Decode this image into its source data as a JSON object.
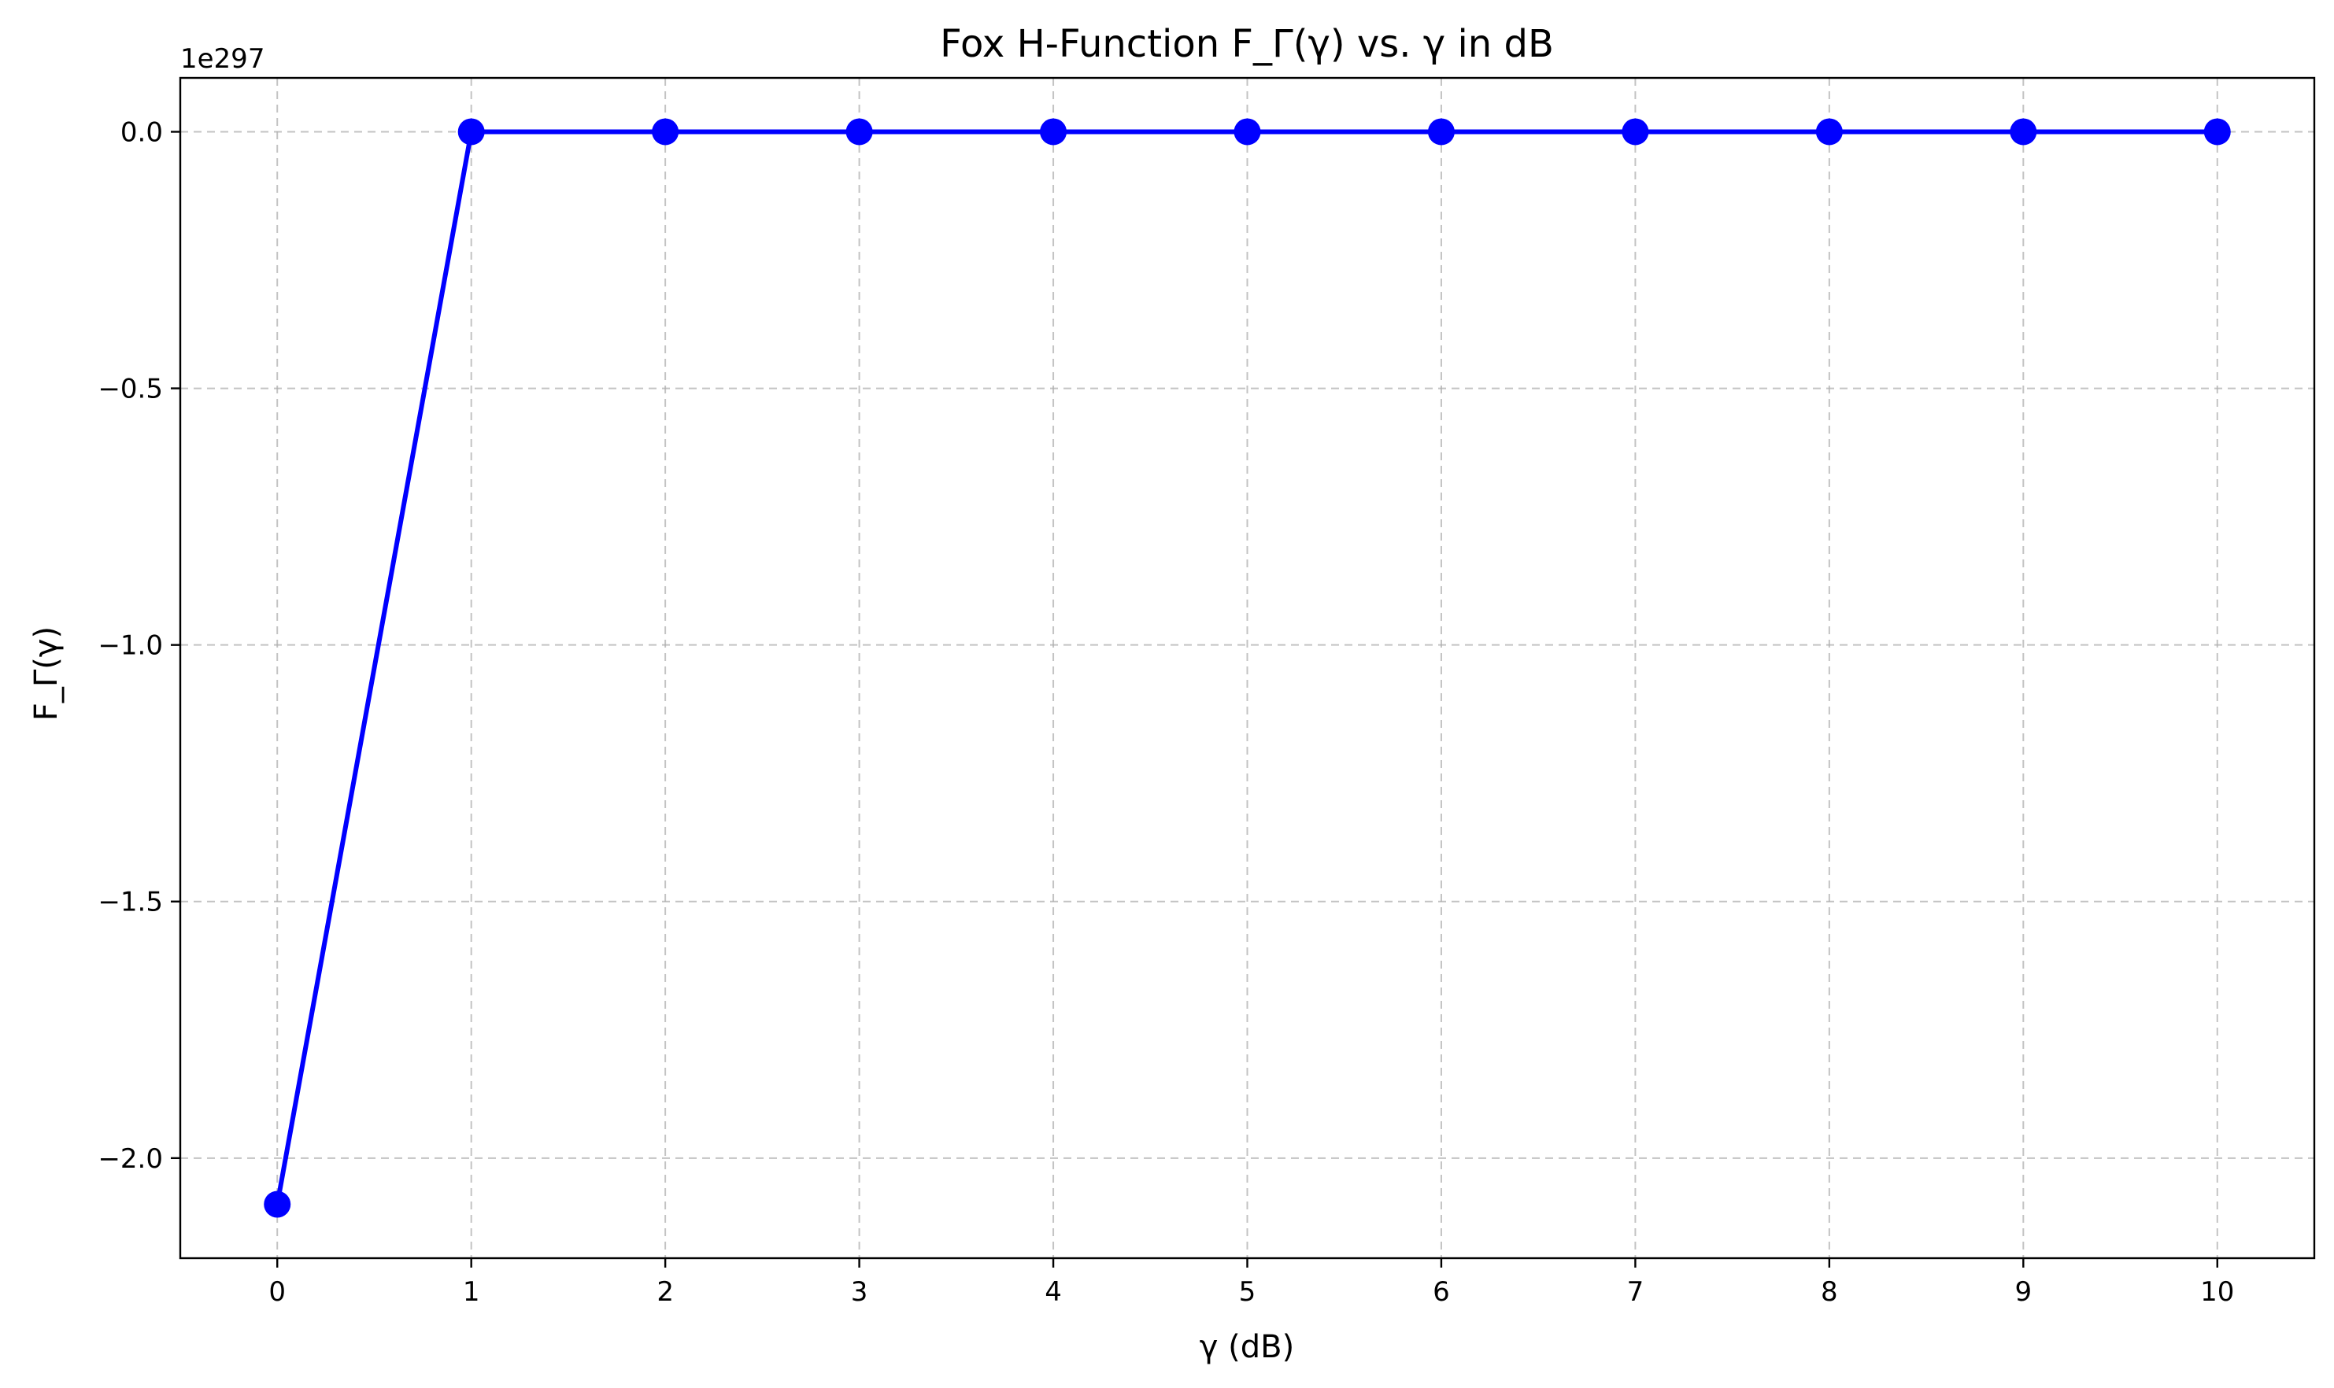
{
  "chart_data": {
    "type": "line",
    "title": "Fox H-Function F_Γ(γ) vs. γ in dB",
    "xlabel": "γ (dB)",
    "ylabel": "F_Γ(γ)",
    "y_offset_label": "1e297",
    "x": [
      0,
      1,
      2,
      3,
      4,
      5,
      6,
      7,
      8,
      9,
      10
    ],
    "series": [
      {
        "values": [
          -2.09,
          0,
          0,
          0,
          0,
          0,
          0,
          0,
          0,
          0,
          0
        ],
        "color": "#0000ff",
        "marker": "circle"
      }
    ],
    "xlim": [
      -0.5,
      10.5
    ],
    "ylim": [
      -2.195,
      0.105
    ],
    "x_ticks": [
      0,
      1,
      2,
      3,
      4,
      5,
      6,
      7,
      8,
      9,
      10
    ],
    "x_tick_labels": [
      "0",
      "1",
      "2",
      "3",
      "4",
      "5",
      "6",
      "7",
      "8",
      "9",
      "10"
    ],
    "y_ticks": [
      0.0,
      -0.5,
      -1.0,
      -1.5,
      -2.0
    ],
    "y_tick_labels": [
      "0.0",
      "−0.5",
      "−1.0",
      "−1.5",
      "−2.0"
    ],
    "grid": true,
    "grid_style": "dashed",
    "legend": false
  }
}
